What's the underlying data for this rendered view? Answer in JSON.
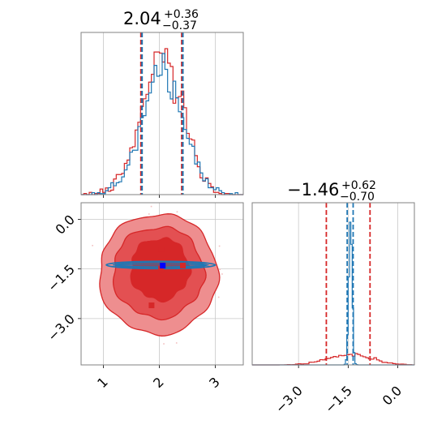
{
  "colors": {
    "red": "#d62728",
    "blue": "#1f77b4",
    "red_fill_1": "#e35052",
    "red_fill_2": "#ee8e8f",
    "red_fill_3": "#f9d9d9"
  },
  "chart_data": [
    {
      "type": "histogram",
      "panel": "top-left marginal (parameter 1)",
      "title": {
        "value": "2.04",
        "plus": "+0.36",
        "minus": "−0.37"
      },
      "xlim": [
        0.6,
        3.5
      ],
      "x_ticks": [
        1,
        2,
        3
      ],
      "grid": true,
      "series": [
        {
          "color": "#d62728",
          "quantiles": [
            1.67,
            2.4
          ]
        },
        {
          "color": "#1f77b4",
          "quantiles": [
            1.69,
            2.42
          ]
        }
      ],
      "dist_center": 2.04,
      "dist_sigma": 0.37
    },
    {
      "type": "scatter",
      "panel": "bottom-left 2D (parameter 1 vs parameter 2)",
      "xlim": [
        0.6,
        3.5
      ],
      "ylim": [
        -4.4,
        0.5
      ],
      "x_ticks": [
        "1",
        "2",
        "3"
      ],
      "y_ticks": [
        "0.0",
        "−1.5",
        "−3.0"
      ],
      "x_tick_values": [
        1,
        2,
        3
      ],
      "y_tick_values": [
        0.0,
        -1.5,
        -3.0
      ],
      "grid": true,
      "markers": [
        {
          "x": 2.03,
          "y": -0.9,
          "color": "#d62728"
        },
        {
          "x": 2.03,
          "y": -1.5,
          "color": "#d62728"
        },
        {
          "x": 2.42,
          "y": -1.4,
          "color": "#d62728"
        },
        {
          "x": 1.86,
          "y": -2.6,
          "color": "#d62728"
        },
        {
          "x": 2.06,
          "y": -1.4,
          "color": "#0000ff"
        }
      ],
      "red_contours": "filled 2D density around (2.04, -1.46)",
      "blue_contours": "narrow horizontal band at y ≈ -1.4 spanning x 1.05 to 3.0"
    },
    {
      "type": "histogram",
      "panel": "bottom-right marginal (parameter 2)",
      "title": {
        "value": "−1.46",
        "plus": "+0.62",
        "minus": "−0.70"
      },
      "xlim": [
        -4.4,
        0.5
      ],
      "x_ticks": [
        "−3.0",
        "−1.5",
        "0.0"
      ],
      "x_tick_values": [
        -3.0,
        -1.5,
        0.0
      ],
      "grid": true,
      "series": [
        {
          "color": "#d62728",
          "quantiles": [
            -2.16,
            -0.84
          ],
          "center": -1.46,
          "sigma": 0.66
        },
        {
          "color": "#1f77b4",
          "quantiles": [
            -1.53,
            -1.35
          ],
          "center": -1.43,
          "sigma": 0.05
        }
      ]
    }
  ]
}
